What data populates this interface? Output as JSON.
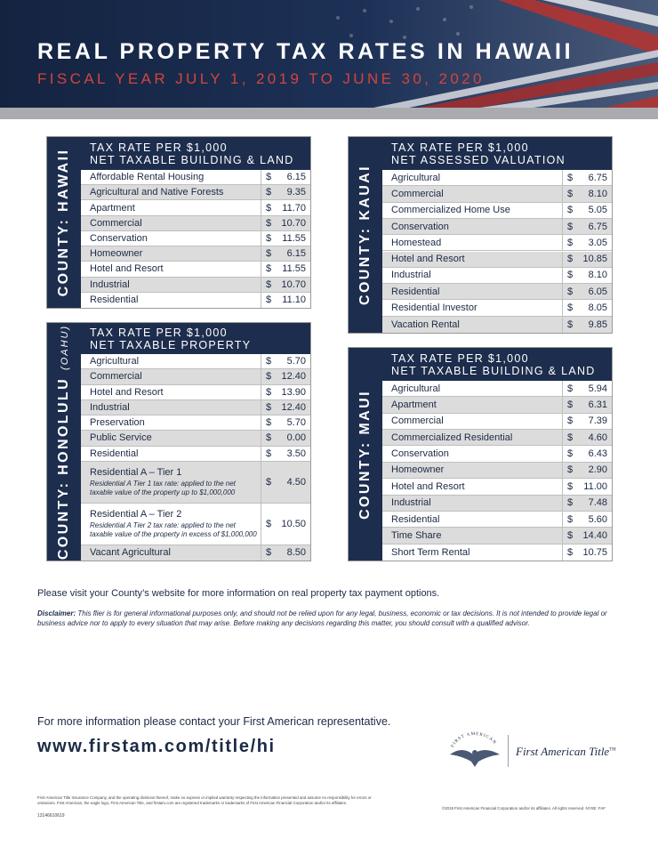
{
  "header": {
    "title": "REAL PROPERTY TAX RATES IN HAWAII",
    "subtitle": "FISCAL YEAR JULY 1, 2019 TO JUNE 30, 2020"
  },
  "counties": [
    {
      "label": "COUNTY: HAWAII",
      "heading": [
        "TAX RATE PER $1,000",
        "NET TAXABLE BUILDING & LAND"
      ],
      "currency": "$",
      "rows": [
        {
          "name": "Affordable Rental Housing",
          "value": "6.15"
        },
        {
          "name": "Agricultural and Native Forests",
          "value": "9.35"
        },
        {
          "name": "Apartment",
          "value": "11.70"
        },
        {
          "name": "Commercial",
          "value": "10.70"
        },
        {
          "name": "Conservation",
          "value": "11.55"
        },
        {
          "name": "Homeowner",
          "value": "6.15"
        },
        {
          "name": "Hotel and Resort",
          "value": "11.55"
        },
        {
          "name": "Industrial",
          "value": "10.70"
        },
        {
          "name": "Residential",
          "value": "11.10"
        }
      ]
    },
    {
      "label": "COUNTY: HONOLULU",
      "label_note": "(OAHU)",
      "heading": [
        "TAX RATE PER $1,000",
        "NET TAXABLE PROPERTY"
      ],
      "currency": "$",
      "rows": [
        {
          "name": "Agricultural",
          "value": "5.70"
        },
        {
          "name": "Commercial",
          "value": "12.40"
        },
        {
          "name": "Hotel and Resort",
          "value": "13.90"
        },
        {
          "name": "Industrial",
          "value": "12.40"
        },
        {
          "name": "Preservation",
          "value": "5.70"
        },
        {
          "name": "Public Service",
          "value": "0.00"
        },
        {
          "name": "Residential",
          "value": "3.50"
        },
        {
          "name": "Residential A – Tier 1",
          "value": "4.50",
          "note": "Residential A Tier 1 tax rate: applied to the net taxable value of the property up to $1,000,000"
        },
        {
          "name": "Residential A – Tier 2",
          "value": "10.50",
          "note": "Residential A Tier 2 tax rate: applied to the net taxable value of the property in excess of $1,000,000"
        },
        {
          "name": "Vacant Agricultural",
          "value": "8.50"
        }
      ]
    },
    {
      "label": "COUNTY: KAUAI",
      "heading": [
        "TAX RATE PER $1,000",
        "NET ASSESSED VALUATION"
      ],
      "currency": "$",
      "rows": [
        {
          "name": "Agricultural",
          "value": "6.75"
        },
        {
          "name": "Commercial",
          "value": "8.10"
        },
        {
          "name": "Commercialized Home Use",
          "value": "5.05"
        },
        {
          "name": "Conservation",
          "value": "6.75"
        },
        {
          "name": "Homestead",
          "value": "3.05"
        },
        {
          "name": "Hotel and Resort",
          "value": "10.85"
        },
        {
          "name": "Industrial",
          "value": "8.10"
        },
        {
          "name": "Residential",
          "value": "6.05"
        },
        {
          "name": "Residential Investor",
          "value": "8.05"
        },
        {
          "name": "Vacation Rental",
          "value": "9.85"
        }
      ]
    },
    {
      "label": "COUNTY: MAUI",
      "heading": [
        "TAX RATE PER $1,000",
        "NET TAXABLE BUILDING & LAND"
      ],
      "currency": "$",
      "rows": [
        {
          "name": "Agricultural",
          "value": "5.94"
        },
        {
          "name": "Apartment",
          "value": "6.31"
        },
        {
          "name": "Commercial",
          "value": "7.39"
        },
        {
          "name": "Commercialized Residential",
          "value": "4.60"
        },
        {
          "name": "Conservation",
          "value": "6.43"
        },
        {
          "name": "Homeowner",
          "value": "2.90"
        },
        {
          "name": "Hotel and Resort",
          "value": "11.00"
        },
        {
          "name": "Industrial",
          "value": "7.48"
        },
        {
          "name": "Residential",
          "value": "5.60"
        },
        {
          "name": "Time Share",
          "value": "14.40"
        },
        {
          "name": "Short Term Rental",
          "value": "10.75"
        }
      ]
    }
  ],
  "footer": {
    "visit": "Please visit your County’s website for more information on real property tax payment options.",
    "disclaimer_label": "Disclaimer:",
    "disclaimer": "This flier is for general informational purposes only, and should not be relied upon for any legal, business, economic or tax decisions. It is not intended to provide legal or business advice nor to apply to every situation that may arise. Before making any decisions regarding this matter, you should consult with a qualified advisor.",
    "contact": "For more information please contact your First American representative.",
    "url": "www.firstam.com/title/hi",
    "logo_arc": "FIRST AMERICAN",
    "logo": "First American Title",
    "logo_tm": "TM",
    "fine_print": "First American Title Insurance Company, and the operating divisions thereof, make no express or implied warranty respecting the information presented and assume no responsibility for errors or omissions. First American, the eagle logo, First American Title, and firstam.com are registered trademarks or trademarks of First American Financial Corporation and/or its affiliates.",
    "code": "13146610619",
    "copyright": "©2019 First American Financial Corporation and/or its affiliates. All rights reserved. NYSE: FAF"
  }
}
